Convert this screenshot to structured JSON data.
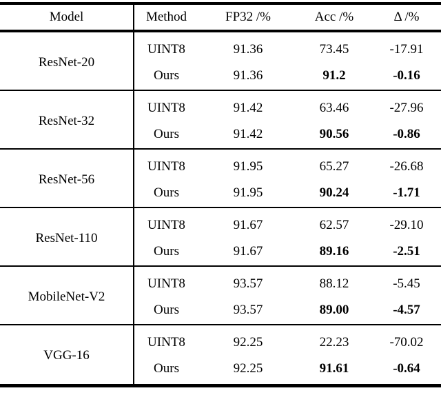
{
  "page": {
    "background_color": "#ffffff",
    "text_color": "#000000",
    "rule_color": "#000000"
  },
  "table": {
    "columns": [
      "Model",
      "Method",
      "FP32 /%",
      "Acc /%",
      "Δ /%"
    ],
    "groups": [
      {
        "model": "ResNet-20",
        "rows": [
          {
            "method": "UINT8",
            "fp32": "91.36",
            "acc": "73.45",
            "delta": "-17.91",
            "bold": false
          },
          {
            "method": "Ours",
            "fp32": "91.36",
            "acc": "91.2",
            "delta": "-0.16",
            "bold": true
          }
        ]
      },
      {
        "model": "ResNet-32",
        "rows": [
          {
            "method": "UINT8",
            "fp32": "91.42",
            "acc": "63.46",
            "delta": "-27.96",
            "bold": false
          },
          {
            "method": "Ours",
            "fp32": "91.42",
            "acc": "90.56",
            "delta": "-0.86",
            "bold": true
          }
        ]
      },
      {
        "model": "ResNet-56",
        "rows": [
          {
            "method": "UINT8",
            "fp32": "91.95",
            "acc": "65.27",
            "delta": "-26.68",
            "bold": false
          },
          {
            "method": "Ours",
            "fp32": "91.95",
            "acc": "90.24",
            "delta": "-1.71",
            "bold": true
          }
        ]
      },
      {
        "model": "ResNet-110",
        "rows": [
          {
            "method": "UINT8",
            "fp32": "91.67",
            "acc": "62.57",
            "delta": "-29.10",
            "bold": false
          },
          {
            "method": "Ours",
            "fp32": "91.67",
            "acc": "89.16",
            "delta": "-2.51",
            "bold": true
          }
        ]
      },
      {
        "model": "MobileNet-V2",
        "rows": [
          {
            "method": "UINT8",
            "fp32": "93.57",
            "acc": "88.12",
            "delta": "-5.45",
            "bold": false
          },
          {
            "method": "Ours",
            "fp32": "93.57",
            "acc": "89.00",
            "delta": "-4.57",
            "bold": true
          }
        ]
      },
      {
        "model": "VGG-16",
        "rows": [
          {
            "method": "UINT8",
            "fp32": "92.25",
            "acc": "22.23",
            "delta": "-70.02",
            "bold": false
          },
          {
            "method": "Ours",
            "fp32": "92.25",
            "acc": "91.61",
            "delta": "-0.64",
            "bold": true
          }
        ]
      }
    ]
  }
}
